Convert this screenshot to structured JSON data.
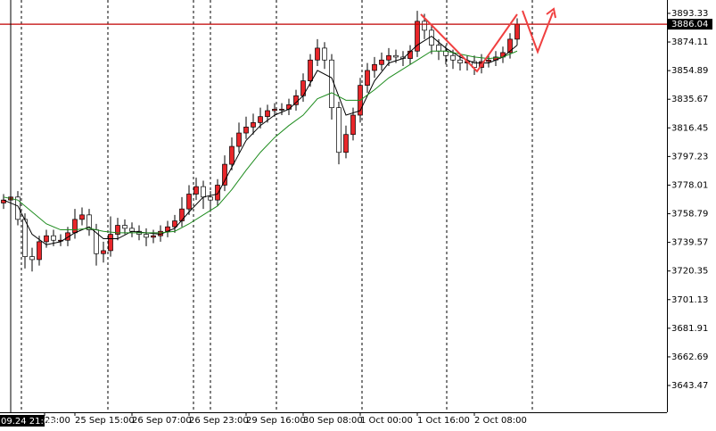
{
  "chart_data": {
    "type": "candlestick",
    "ylim": [
      3625.5,
      3902.3
    ],
    "yticks": [
      3893.33,
      3874.11,
      3854.89,
      3835.67,
      3816.45,
      3797.23,
      3778.01,
      3758.79,
      3739.57,
      3720.35,
      3701.13,
      3681.91,
      3662.69,
      3643.47
    ],
    "xlim": [
      0,
      187
    ],
    "xticks": [
      {
        "value": 12.5,
        "label": "23:00"
      },
      {
        "value": 21,
        "label": "25 Sep 15:00"
      },
      {
        "value": 37,
        "label": "26 Sep 07:00"
      },
      {
        "value": 53,
        "label": "26 Sep 23:00"
      },
      {
        "value": 69,
        "label": "29 Sep 16:00"
      },
      {
        "value": 85,
        "label": "30 Sep 08:00"
      },
      {
        "value": 101,
        "label": "1 Oct 00:00"
      },
      {
        "value": 117,
        "label": "1 Oct 16:00"
      },
      {
        "value": 133,
        "label": "2 Oct 08:00"
      }
    ],
    "crosshair": {
      "x": 3,
      "label": "09.24 21:00"
    },
    "current_price": 3886.04,
    "up_color": "#e8262a",
    "down_color": "#ffffff",
    "x": [
      1,
      3,
      5,
      7,
      9,
      11,
      13,
      15,
      17,
      19,
      21,
      23,
      25,
      27,
      29,
      31,
      33,
      35,
      37,
      39,
      41,
      43,
      45,
      47,
      49,
      51,
      53,
      55,
      57,
      59,
      61,
      63,
      65,
      67,
      69,
      71,
      73,
      75,
      77,
      79,
      81,
      83,
      85,
      87,
      89,
      91,
      93,
      95,
      97,
      99,
      101,
      103,
      105,
      107,
      109,
      111,
      113,
      115,
      117,
      119,
      121,
      123,
      125,
      127,
      129,
      131,
      133,
      135,
      137,
      139,
      141,
      143,
      145
    ],
    "open": [
      3766,
      3768,
      3770,
      3755,
      3730,
      3728,
      3740,
      3744,
      3741,
      3741,
      3746,
      3755,
      3758,
      3748,
      3732,
      3734,
      3745,
      3751,
      3749,
      3747,
      3745,
      3743,
      3744,
      3747,
      3750,
      3754,
      3762,
      3772,
      3777,
      3770,
      3768,
      3778,
      3792,
      3804,
      3813,
      3817,
      3820,
      3824,
      3828,
      3829,
      3829,
      3832,
      3838,
      3848,
      3862,
      3870,
      3862,
      3830,
      3800,
      3812,
      3825,
      3845,
      3855,
      3859,
      3862,
      3865,
      3864,
      3863,
      3868,
      3888,
      3882,
      3872,
      3868,
      3865,
      3862,
      3860,
      3861,
      3857,
      3861,
      3862,
      3864,
      3867,
      3876
    ],
    "high": [
      3772,
      3774,
      3774,
      3759,
      3736,
      3744,
      3748,
      3748,
      3745,
      3750,
      3762,
      3763,
      3762,
      3752,
      3740,
      3757,
      3756,
      3755,
      3753,
      3751,
      3749,
      3748,
      3751,
      3754,
      3758,
      3770,
      3778,
      3783,
      3781,
      3774,
      3782,
      3798,
      3810,
      3820,
      3824,
      3826,
      3830,
      3832,
      3833,
      3833,
      3836,
      3842,
      3853,
      3866,
      3876,
      3874,
      3866,
      3834,
      3818,
      3830,
      3850,
      3860,
      3864,
      3867,
      3870,
      3869,
      3868,
      3872,
      3895,
      3893,
      3886,
      3876,
      3872,
      3869,
      3866,
      3865,
      3865,
      3866,
      3866,
      3868,
      3871,
      3880,
      3890
    ],
    "low": [
      3762,
      3764,
      3751,
      3722,
      3720,
      3724,
      3736,
      3737,
      3737,
      3737,
      3742,
      3751,
      3744,
      3724,
      3726,
      3730,
      3741,
      3745,
      3743,
      3741,
      3737,
      3739,
      3740,
      3743,
      3746,
      3750,
      3758,
      3768,
      3762,
      3760,
      3764,
      3774,
      3788,
      3800,
      3809,
      3812,
      3816,
      3820,
      3824,
      3825,
      3825,
      3828,
      3834,
      3844,
      3858,
      3856,
      3822,
      3792,
      3796,
      3808,
      3820,
      3840,
      3850,
      3855,
      3858,
      3860,
      3858,
      3859,
      3864,
      3876,
      3866,
      3862,
      3859,
      3856,
      3855,
      3855,
      3852,
      3853,
      3857,
      3858,
      3860,
      3863,
      3872
    ],
    "close": [
      3768,
      3770,
      3755,
      3730,
      3728,
      3740,
      3744,
      3741,
      3741,
      3746,
      3755,
      3758,
      3748,
      3732,
      3734,
      3745,
      3751,
      3749,
      3747,
      3745,
      3743,
      3744,
      3747,
      3750,
      3754,
      3762,
      3772,
      3777,
      3770,
      3768,
      3778,
      3792,
      3804,
      3813,
      3817,
      3820,
      3824,
      3828,
      3829,
      3829,
      3832,
      3838,
      3848,
      3862,
      3870,
      3862,
      3830,
      3800,
      3812,
      3825,
      3845,
      3855,
      3859,
      3862,
      3865,
      3864,
      3863,
      3868,
      3888,
      3882,
      3872,
      3868,
      3865,
      3862,
      3860,
      3861,
      3857,
      3861,
      3862,
      3864,
      3867,
      3876,
      3886
    ],
    "series": [
      {
        "color": "#000000",
        "x": [
          1,
          5,
          9,
          13,
          17,
          21,
          25,
          29,
          33,
          37,
          41,
          45,
          49,
          53,
          57,
          61,
          65,
          69,
          73,
          77,
          81,
          85,
          89,
          93,
          97,
          101,
          105,
          109,
          113,
          117,
          121,
          125,
          129,
          133,
          137,
          141,
          145
        ],
        "values": [
          3768,
          3764,
          3745,
          3738,
          3740,
          3746,
          3750,
          3742,
          3742,
          3747,
          3746,
          3745,
          3749,
          3760,
          3770,
          3772,
          3790,
          3808,
          3818,
          3825,
          3829,
          3838,
          3855,
          3850,
          3825,
          3828,
          3848,
          3860,
          3863,
          3872,
          3878,
          3870,
          3864,
          3860,
          3860,
          3864,
          3872
        ]
      },
      {
        "color": "#1e8c1e",
        "x": [
          1,
          5,
          9,
          13,
          17,
          21,
          25,
          29,
          33,
          37,
          41,
          45,
          49,
          53,
          57,
          61,
          65,
          69,
          73,
          77,
          81,
          85,
          89,
          93,
          97,
          101,
          105,
          109,
          113,
          117,
          121,
          125,
          129,
          133,
          137,
          141,
          145
        ],
        "values": [
          3770,
          3768,
          3760,
          3752,
          3748,
          3748,
          3749,
          3747,
          3746,
          3746,
          3746,
          3746,
          3747,
          3752,
          3758,
          3764,
          3775,
          3788,
          3800,
          3810,
          3818,
          3825,
          3836,
          3840,
          3835,
          3835,
          3842,
          3850,
          3856,
          3862,
          3868,
          3868,
          3866,
          3864,
          3863,
          3864,
          3868
        ]
      }
    ]
  }
}
